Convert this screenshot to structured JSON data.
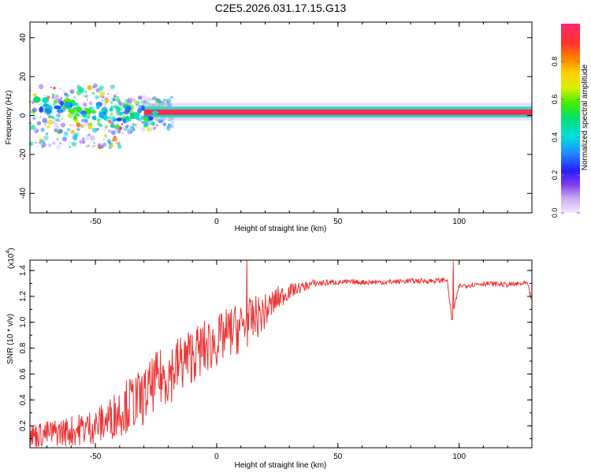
{
  "page_title": "C2E5.2026.031.17.15.G13",
  "chart_data": [
    {
      "type": "heatmap",
      "title": "C2E5.2026.031.17.15.G13",
      "xlabel": "Height of straight line (km)",
      "ylabel": "Frequency (Hz)",
      "xlim": [
        -77,
        130
      ],
      "ylim": [
        -50,
        48
      ],
      "x_ticks": [
        -50,
        0,
        50,
        100
      ],
      "x_tick_labels": [
        "-50",
        "0",
        "50",
        "100"
      ],
      "y_ticks": [
        -40,
        -20,
        0,
        20,
        40
      ],
      "y_tick_labels": [
        "-40",
        "-20",
        "0",
        "20",
        "40"
      ],
      "band": {
        "center_hz": 1.5,
        "segments": [
          {
            "x_start": -30,
            "x_end": 130,
            "amplitude": 0.95
          },
          {
            "x_start": -77,
            "x_end": -30,
            "amplitude": 0.35
          }
        ],
        "scatter_region": {
          "x_start": -77,
          "x_end": -18,
          "freq_min": -20,
          "freq_max": 12
        }
      },
      "colorbar": {
        "label": "Normalized spectral amplitude",
        "range": [
          0,
          1
        ],
        "ticks": [
          0.0,
          0.2,
          0.4,
          0.6,
          0.8
        ],
        "tick_labels": [
          "0.0",
          "0.2",
          "0.4",
          "0.6",
          "0.8"
        ]
      }
    },
    {
      "type": "line",
      "xlabel": "Height of straight line (km)",
      "ylabel": "SNR (10 * v/v)",
      "multiplier_label": "(x10",
      "multiplier_exp": "4",
      "xlim": [
        -77,
        130
      ],
      "ylim": [
        0.03,
        1.48
      ],
      "x_ticks": [
        -50,
        0,
        50,
        100
      ],
      "x_tick_labels": [
        "-50",
        "0",
        "50",
        "100"
      ],
      "y_ticks": [
        0.2,
        0.4,
        0.6,
        0.8,
        1.0,
        1.2,
        1.4
      ],
      "y_tick_labels": [
        "0.2",
        "0.4",
        "0.6",
        "0.8",
        "1.0",
        "1.2",
        "1.4"
      ],
      "series": [
        {
          "name": "SNR",
          "color": "#ee3333",
          "x": [
            -77,
            -70,
            -60,
            -50,
            -45,
            -40,
            -35,
            -30,
            -25,
            -20,
            -15,
            -10,
            -5,
            0,
            5,
            10,
            15,
            20,
            25,
            30,
            35,
            40,
            50,
            60,
            70,
            80,
            90,
            95,
            97,
            100,
            110,
            120,
            128,
            130
          ],
          "values": [
            0.12,
            0.14,
            0.16,
            0.2,
            0.24,
            0.32,
            0.38,
            0.42,
            0.55,
            0.6,
            0.68,
            0.75,
            0.8,
            0.85,
            0.92,
            0.96,
            1.02,
            1.08,
            1.18,
            1.24,
            1.27,
            1.3,
            1.31,
            1.31,
            1.31,
            1.32,
            1.32,
            1.33,
            1.03,
            1.28,
            1.3,
            1.29,
            1.3,
            1.17
          ],
          "noise": [
            0.1,
            0.1,
            0.12,
            0.14,
            0.16,
            0.2,
            0.22,
            0.22,
            0.22,
            0.24,
            0.24,
            0.22,
            0.22,
            0.2,
            0.2,
            0.2,
            0.18,
            0.14,
            0.1,
            0.06,
            0.04,
            0.03,
            0.02,
            0.02,
            0.02,
            0.02,
            0.02,
            0.02,
            0.02,
            0.02,
            0.02,
            0.02,
            0.02,
            0.02
          ],
          "spikes": [
            {
              "x": 12.5,
              "value": 1.48
            },
            {
              "x": 97.5,
              "value": 1.47
            },
            {
              "x": 97.0,
              "value": 1.02
            }
          ]
        }
      ]
    }
  ]
}
